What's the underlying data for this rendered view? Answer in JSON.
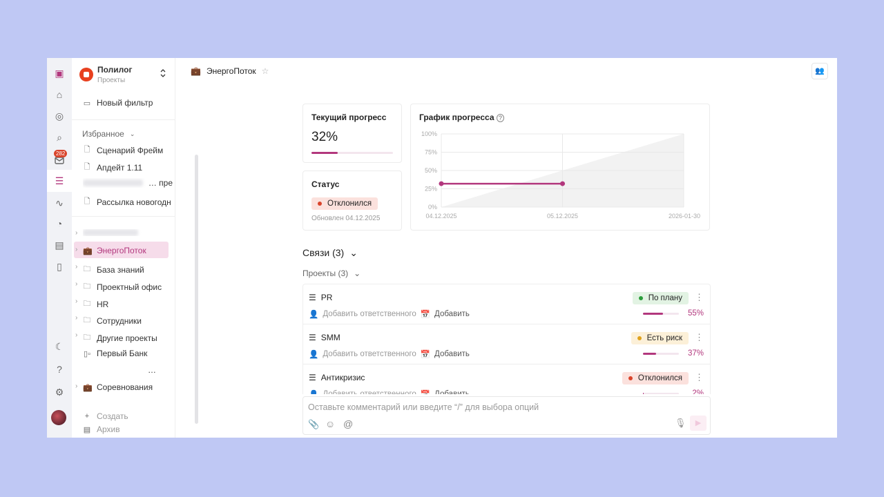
{
  "rail": {
    "inbox_badge": "282"
  },
  "sidebar": {
    "org_name": "Полилог",
    "org_sub": "Проекты",
    "new_filter": "Новый фильтр",
    "favorites_label": "Избранное",
    "favorites": [
      "Сценарий Фрейм",
      "Апдейт 1.11",
      "… пре",
      "Рассылка новогодн"
    ],
    "projects": [
      "ЭнергоПоток",
      "База знаний",
      "Проектный офис",
      "HR",
      "Сотрудники",
      "Другие проекты",
      "Первый Банк"
    ],
    "ellipsis": "…",
    "competitions": "Соревнования",
    "create": "Создать",
    "archive": "Архив"
  },
  "header": {
    "title": "ЭнергоПоток"
  },
  "progress": {
    "title": "Текущий прогресс",
    "value": "32%",
    "fraction": 0.32
  },
  "status": {
    "title": "Статус",
    "label": "Отклонился",
    "updated": "Обновлен 04.12.2025"
  },
  "chart_data": {
    "type": "line",
    "title": "График прогресса",
    "yticks": [
      "100%",
      "75%",
      "50%",
      "25%",
      "0%"
    ],
    "xticks": [
      "04.12.2025",
      "05.12.2025",
      "2026-01-30"
    ],
    "ylim": [
      0,
      100
    ],
    "series": [
      {
        "name": "progress",
        "x": [
          0,
          1
        ],
        "values": [
          32,
          32
        ]
      },
      {
        "name": "plan",
        "x": [
          0,
          2
        ],
        "values": [
          0,
          100
        ]
      }
    ],
    "grid": true
  },
  "links": {
    "title": "Связи (3)",
    "projects_label": "Проекты (3)",
    "rows": [
      {
        "name": "PR",
        "status": "По плану",
        "status_color": "#2a9d3a",
        "status_bg": "#e2f3e3",
        "assignee": "Добавить ответственного",
        "date": "Добавить",
        "percent": "55%",
        "fraction": 0.55
      },
      {
        "name": "SMM",
        "status": "Есть риск",
        "status_color": "#e0a21c",
        "status_bg": "#fcf0d8",
        "assignee": "Добавить ответственного",
        "date": "Добавить",
        "percent": "37%",
        "fraction": 0.37
      },
      {
        "name": "Антикризис",
        "status": "Отклонился",
        "status_color": "#d9442b",
        "status_bg": "#fbe1dd",
        "assignee": "Добавить ответственного",
        "date": "Добавить",
        "percent": "2%",
        "fraction": 0.02
      }
    ]
  },
  "comment": {
    "placeholder": "Оставьте комментарий или введите “/” для выбора опций"
  }
}
